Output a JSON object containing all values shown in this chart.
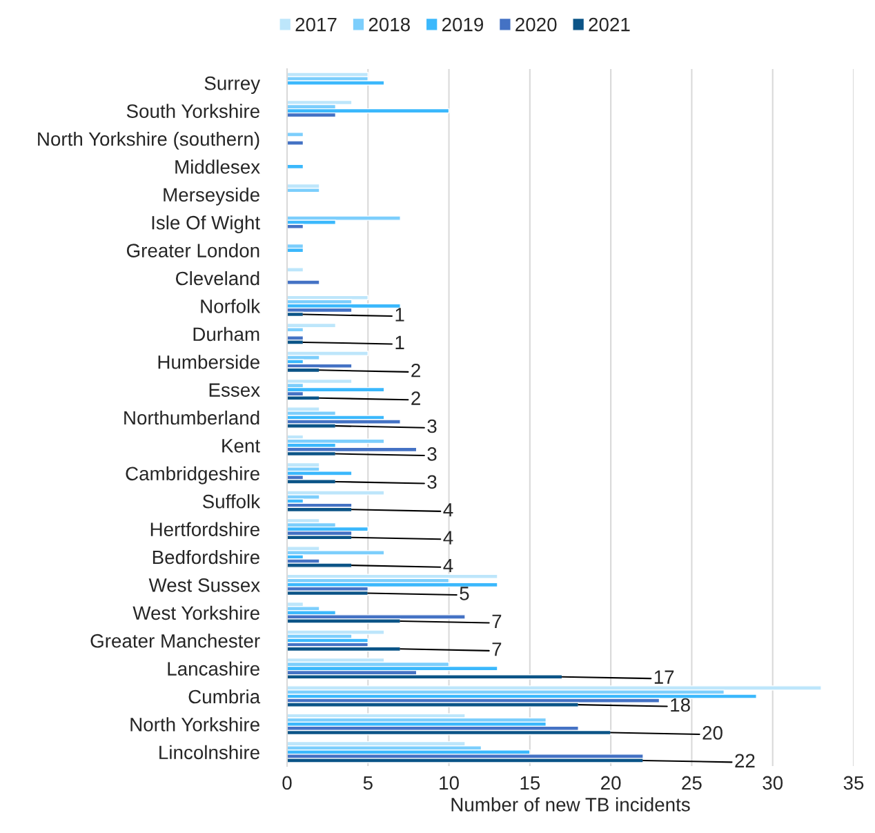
{
  "chart_data": {
    "type": "bar",
    "orientation": "horizontal",
    "xlabel": "Number of new TB incidents",
    "xlim": [
      0,
      35
    ],
    "xticks": [
      0,
      5,
      10,
      15,
      20,
      25,
      30,
      35
    ],
    "grid": "x",
    "legend": "top",
    "categories": [
      "Surrey",
      "South Yorkshire",
      "North Yorkshire (southern)",
      "Middlesex",
      "Merseyside",
      "Isle Of Wight",
      "Greater London",
      "Cleveland",
      "Norfolk",
      "Durham",
      "Humberside",
      "Essex",
      "Northumberland",
      "Kent",
      "Cambridgeshire",
      "Suffolk",
      "Hertfordshire",
      "Bedfordshire",
      "West Sussex",
      "West Yorkshire",
      "Greater Manchester",
      "Lancashire",
      "Cumbria",
      "North Yorkshire",
      "Lincolnshire"
    ],
    "series": [
      {
        "name": "2017",
        "color": "#bde6fb",
        "values": [
          5,
          4,
          null,
          null,
          2,
          null,
          null,
          1,
          5,
          3,
          5,
          4,
          2,
          1,
          2,
          6,
          2,
          2,
          13,
          1,
          6,
          6,
          33,
          11,
          11
        ]
      },
      {
        "name": "2018",
        "color": "#7ccefc",
        "values": [
          5,
          3,
          1,
          null,
          2,
          7,
          1,
          null,
          4,
          1,
          2,
          1,
          3,
          6,
          2,
          2,
          3,
          6,
          10,
          2,
          4,
          10,
          27,
          16,
          12
        ]
      },
      {
        "name": "2019",
        "color": "#3bb8fc",
        "values": [
          6,
          10,
          null,
          1,
          null,
          3,
          1,
          null,
          7,
          null,
          1,
          6,
          6,
          3,
          4,
          1,
          5,
          1,
          13,
          3,
          5,
          13,
          29,
          16,
          15
        ]
      },
      {
        "name": "2020",
        "color": "#4472c4",
        "values": [
          null,
          3,
          1,
          null,
          null,
          1,
          null,
          2,
          4,
          1,
          4,
          1,
          7,
          8,
          1,
          4,
          4,
          2,
          5,
          11,
          5,
          8,
          23,
          18,
          22
        ]
      },
      {
        "name": "2021",
        "color": "#0b5487",
        "values": [
          null,
          null,
          null,
          null,
          null,
          null,
          null,
          null,
          1,
          1,
          2,
          2,
          3,
          3,
          3,
          4,
          4,
          4,
          5,
          7,
          7,
          17,
          18,
          20,
          22
        ],
        "value_labels": [
          null,
          null,
          null,
          null,
          null,
          null,
          null,
          null,
          "1",
          "1",
          "2",
          "2",
          "3",
          "3",
          "3",
          "4",
          "4",
          "4",
          "5",
          "7",
          "7",
          "17",
          "18",
          "20",
          "22"
        ]
      }
    ]
  }
}
